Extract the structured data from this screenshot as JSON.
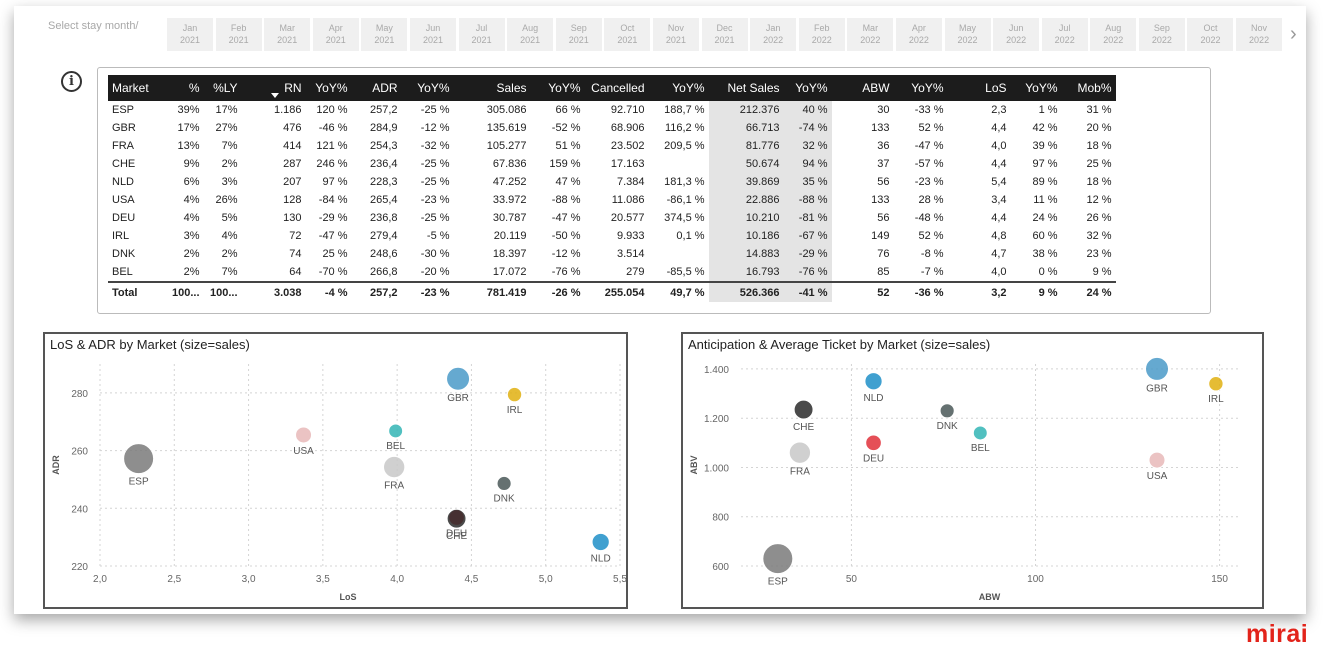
{
  "filter": {
    "label": "Select stay month/",
    "months": [
      {
        "m": "Jan",
        "y": "2021"
      },
      {
        "m": "Feb",
        "y": "2021"
      },
      {
        "m": "Mar",
        "y": "2021"
      },
      {
        "m": "Apr",
        "y": "2021"
      },
      {
        "m": "May",
        "y": "2021"
      },
      {
        "m": "Jun",
        "y": "2021"
      },
      {
        "m": "Jul",
        "y": "2021"
      },
      {
        "m": "Aug",
        "y": "2021"
      },
      {
        "m": "Sep",
        "y": "2021"
      },
      {
        "m": "Oct",
        "y": "2021"
      },
      {
        "m": "Nov",
        "y": "2021"
      },
      {
        "m": "Dec",
        "y": "2021"
      },
      {
        "m": "Jan",
        "y": "2022"
      },
      {
        "m": "Feb",
        "y": "2022"
      },
      {
        "m": "Mar",
        "y": "2022"
      },
      {
        "m": "Apr",
        "y": "2022"
      },
      {
        "m": "May",
        "y": "2022"
      },
      {
        "m": "Jun",
        "y": "2022"
      },
      {
        "m": "Jul",
        "y": "2022"
      },
      {
        "m": "Aug",
        "y": "2022"
      },
      {
        "m": "Sep",
        "y": "2022"
      },
      {
        "m": "Oct",
        "y": "2022"
      },
      {
        "m": "Nov",
        "y": "2022"
      }
    ],
    "next_icon": "chevron-right-icon"
  },
  "info_icon": "i",
  "table": {
    "columns": [
      "Market",
      "%",
      "%LY",
      "RN",
      "YoY%",
      "ADR",
      "YoY%",
      "Sales",
      "YoY%",
      "Cancelled",
      "YoY%",
      "Net Sales",
      "YoY%",
      "ABW",
      "YoY%",
      "LoS",
      "YoY%",
      "Mob%"
    ],
    "rows": [
      [
        "ESP",
        "39%",
        "17%",
        "1.186",
        "120 %",
        "257,2",
        "-25 %",
        "305.086",
        "66 %",
        "92.710",
        "188,7 %",
        "212.376",
        "40 %",
        "30",
        "-33 %",
        "2,3",
        "1 %",
        "31 %"
      ],
      [
        "GBR",
        "17%",
        "27%",
        "476",
        "-46 %",
        "284,9",
        "-12 %",
        "135.619",
        "-52 %",
        "68.906",
        "116,2 %",
        "66.713",
        "-74 %",
        "133",
        "52 %",
        "4,4",
        "42 %",
        "20 %"
      ],
      [
        "FRA",
        "13%",
        "7%",
        "414",
        "121 %",
        "254,3",
        "-32 %",
        "105.277",
        "51 %",
        "23.502",
        "209,5 %",
        "81.776",
        "32 %",
        "36",
        "-47 %",
        "4,0",
        "39 %",
        "18 %"
      ],
      [
        "CHE",
        "9%",
        "2%",
        "287",
        "246 %",
        "236,4",
        "-25 %",
        "67.836",
        "159 %",
        "17.163",
        "",
        "50.674",
        "94 %",
        "37",
        "-57 %",
        "4,4",
        "97 %",
        "25 %"
      ],
      [
        "NLD",
        "6%",
        "3%",
        "207",
        "97 %",
        "228,3",
        "-25 %",
        "47.252",
        "47 %",
        "7.384",
        "181,3 %",
        "39.869",
        "35 %",
        "56",
        "-23 %",
        "5,4",
        "89 %",
        "18 %"
      ],
      [
        "USA",
        "4%",
        "26%",
        "128",
        "-84 %",
        "265,4",
        "-23 %",
        "33.972",
        "-88 %",
        "11.086",
        "-86,1 %",
        "22.886",
        "-88 %",
        "133",
        "28 %",
        "3,4",
        "11 %",
        "12 %"
      ],
      [
        "DEU",
        "4%",
        "5%",
        "130",
        "-29 %",
        "236,8",
        "-25 %",
        "30.787",
        "-47 %",
        "20.577",
        "374,5 %",
        "10.210",
        "-81 %",
        "56",
        "-48 %",
        "4,4",
        "24 %",
        "26 %"
      ],
      [
        "IRL",
        "3%",
        "4%",
        "72",
        "-47 %",
        "279,4",
        "-5 %",
        "20.119",
        "-50 %",
        "9.933",
        "0,1 %",
        "10.186",
        "-67 %",
        "149",
        "52 %",
        "4,8",
        "60 %",
        "32 %"
      ],
      [
        "DNK",
        "2%",
        "2%",
        "74",
        "25 %",
        "248,6",
        "-30 %",
        "18.397",
        "-12 %",
        "3.514",
        "",
        "14.883",
        "-29 %",
        "76",
        "-8 %",
        "4,7",
        "38 %",
        "23 %"
      ],
      [
        "BEL",
        "2%",
        "7%",
        "64",
        "-70 %",
        "266,8",
        "-20 %",
        "17.072",
        "-76 %",
        "279",
        "-85,5 %",
        "16.793",
        "-76 %",
        "85",
        "-7 %",
        "4,0",
        "0 %",
        "9 %"
      ]
    ],
    "total": [
      "Total",
      "100...",
      "100...",
      "3.038",
      "-4 %",
      "257,2",
      "-23 %",
      "781.419",
      "-26 %",
      "255.054",
      "49,7 %",
      "526.366",
      "-41 %",
      "52",
      "-36 %",
      "3,2",
      "9 %",
      "24 %"
    ]
  },
  "chart_data": [
    {
      "type": "scatter",
      "title": "LoS & ADR by Market (size=sales)",
      "xlabel": "LoS",
      "ylabel": "ADR",
      "xlim": [
        2.0,
        5.5
      ],
      "ylim": [
        220,
        290
      ],
      "xticks": [
        "2,0",
        "2,5",
        "3,0",
        "3,5",
        "4,0",
        "4,5",
        "5,0",
        "5,5"
      ],
      "xtick_values": [
        2.0,
        2.5,
        3.0,
        3.5,
        4.0,
        4.5,
        5.0,
        5.5
      ],
      "yticks": [
        "220",
        "240",
        "260",
        "280"
      ],
      "ytick_values": [
        220,
        240,
        260,
        280
      ],
      "grid": true,
      "points": [
        {
          "label": "ESP",
          "x": 2.26,
          "y": 257.2,
          "size": 305086,
          "color": "#7a7a7a"
        },
        {
          "label": "USA",
          "x": 3.37,
          "y": 265.4,
          "size": 33972,
          "color": "#e8b8b8"
        },
        {
          "label": "BEL",
          "x": 3.99,
          "y": 266.8,
          "size": 17072,
          "color": "#33b5b5"
        },
        {
          "label": "FRA",
          "x": 3.98,
          "y": 254.3,
          "size": 105277,
          "color": "#c8c8c8"
        },
        {
          "label": "GBR",
          "x": 4.41,
          "y": 284.9,
          "size": 135619,
          "color": "#4a9ac8"
        },
        {
          "label": "IRL",
          "x": 4.79,
          "y": 279.4,
          "size": 20119,
          "color": "#e0b010"
        },
        {
          "label": "DNK",
          "x": 4.72,
          "y": 248.6,
          "size": 18397,
          "color": "#4a5858"
        },
        {
          "label": "DEU",
          "x": 4.4,
          "y": 236.8,
          "size": 30787,
          "color": "#e0303a"
        },
        {
          "label": "CHE",
          "x": 4.4,
          "y": 236.4,
          "size": 67836,
          "color": "#2a2a2a"
        },
        {
          "label": "NLD",
          "x": 5.37,
          "y": 228.3,
          "size": 47252,
          "color": "#1f8fc8"
        }
      ]
    },
    {
      "type": "scatter",
      "title": "Anticipation & Average Ticket by Market (size=sales)",
      "xlabel": "ABW",
      "ylabel": "ABV",
      "xlim": [
        20,
        155
      ],
      "ylim": [
        600,
        1420
      ],
      "xticks": [
        "50",
        "100",
        "150"
      ],
      "xtick_values": [
        50,
        100,
        150
      ],
      "yticks": [
        "600",
        "800",
        "1.000",
        "1.200",
        "1.400"
      ],
      "ytick_values": [
        600,
        800,
        1000,
        1200,
        1400
      ],
      "grid": true,
      "points": [
        {
          "label": "ESP",
          "x": 30,
          "y": 630,
          "size": 305086,
          "color": "#7a7a7a"
        },
        {
          "label": "CHE",
          "x": 37,
          "y": 1235,
          "size": 67836,
          "color": "#2a2a2a"
        },
        {
          "label": "FRA",
          "x": 36,
          "y": 1060,
          "size": 105277,
          "color": "#c8c8c8"
        },
        {
          "label": "NLD",
          "x": 56,
          "y": 1350,
          "size": 47252,
          "color": "#1f8fc8"
        },
        {
          "label": "DEU",
          "x": 56,
          "y": 1100,
          "size": 30787,
          "color": "#e0303a"
        },
        {
          "label": "DNK",
          "x": 76,
          "y": 1230,
          "size": 18397,
          "color": "#4a5858"
        },
        {
          "label": "BEL",
          "x": 85,
          "y": 1140,
          "size": 17072,
          "color": "#33b5b5"
        },
        {
          "label": "GBR",
          "x": 133,
          "y": 1400,
          "size": 135619,
          "color": "#4a9ac8"
        },
        {
          "label": "USA",
          "x": 133,
          "y": 1030,
          "size": 33972,
          "color": "#e8b8b8"
        },
        {
          "label": "IRL",
          "x": 149,
          "y": 1340,
          "size": 20119,
          "color": "#e0b010"
        }
      ]
    }
  ],
  "logo": "mirai"
}
